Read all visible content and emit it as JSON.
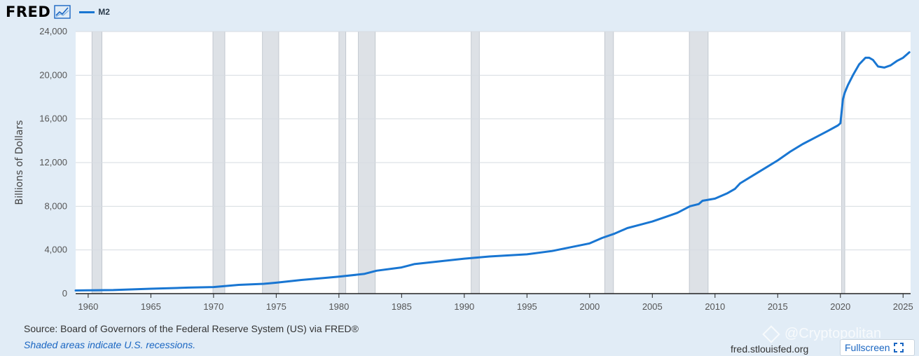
{
  "header": {
    "logo_text": "FRED",
    "logo_icon": "line-chart-icon"
  },
  "legend": {
    "label": "M2",
    "color": "#1976d2"
  },
  "chart_data": {
    "type": "line",
    "title": "",
    "xlabel": "",
    "ylabel": "Billions of Dollars",
    "xlim": [
      1959.0,
      2025.6
    ],
    "ylim": [
      0,
      24000
    ],
    "x_ticks": [
      1960,
      1965,
      1970,
      1975,
      1980,
      1985,
      1990,
      1995,
      2000,
      2005,
      2010,
      2015,
      2020,
      2025
    ],
    "y_ticks": [
      0,
      4000,
      8000,
      12000,
      16000,
      20000,
      24000
    ],
    "y_tick_labels": [
      "0",
      "4,000",
      "8,000",
      "12,000",
      "16,000",
      "20,000",
      "24,000"
    ],
    "grid": true,
    "legend_position": "top-left",
    "recession_shading": [
      [
        1960.3,
        1961.1
      ],
      [
        1969.95,
        1970.9
      ],
      [
        1973.9,
        1975.2
      ],
      [
        1980.0,
        1980.55
      ],
      [
        1981.55,
        1982.9
      ],
      [
        1990.55,
        1991.2
      ],
      [
        2001.2,
        2001.9
      ],
      [
        2007.95,
        2009.45
      ],
      [
        2020.1,
        2020.35
      ]
    ],
    "series": [
      {
        "name": "M2",
        "color": "#1976d2",
        "x": [
          1959.0,
          1960,
          1962,
          1965,
          1968,
          1970,
          1972,
          1974,
          1975,
          1977,
          1979,
          1980,
          1982,
          1983,
          1985,
          1986,
          1988,
          1990,
          1992,
          1995,
          1997,
          2000,
          2001,
          2002,
          2003,
          2004,
          2005,
          2006,
          2007,
          2008,
          2008.7,
          2009,
          2010,
          2011,
          2011.6,
          2012,
          2013,
          2014,
          2015,
          2016,
          2017,
          2018,
          2019,
          2019.8,
          2020.0,
          2020.2,
          2020.35,
          2020.6,
          2021,
          2021.5,
          2022,
          2022.3,
          2022.6,
          2023,
          2023.5,
          2024,
          2024.5,
          2025,
          2025.5
        ],
        "y": [
          290,
          300,
          330,
          450,
          550,
          600,
          800,
          900,
          1000,
          1250,
          1450,
          1550,
          1800,
          2100,
          2400,
          2700,
          2950,
          3200,
          3400,
          3600,
          3900,
          4600,
          5100,
          5500,
          6000,
          6300,
          6600,
          7000,
          7400,
          8000,
          8200,
          8500,
          8700,
          9200,
          9600,
          10100,
          10800,
          11500,
          12200,
          13000,
          13700,
          14300,
          14900,
          15400,
          15600,
          17800,
          18400,
          19100,
          20000,
          21000,
          21600,
          21600,
          21400,
          20800,
          20700,
          20900,
          21300,
          21600,
          22100
        ]
      }
    ]
  },
  "footer": {
    "source": "Source: Board of Governors of the Federal Reserve System (US) via FRED®",
    "recession_note": "Shaded areas indicate U.S. recessions.",
    "site": "fred.stlouisfed.org",
    "fullscreen_label": "Fullscreen",
    "fullscreen_icon": "expand-icon"
  },
  "watermark": {
    "text": "@Cryptopolitan",
    "icon": "binance-diamond-icon"
  }
}
